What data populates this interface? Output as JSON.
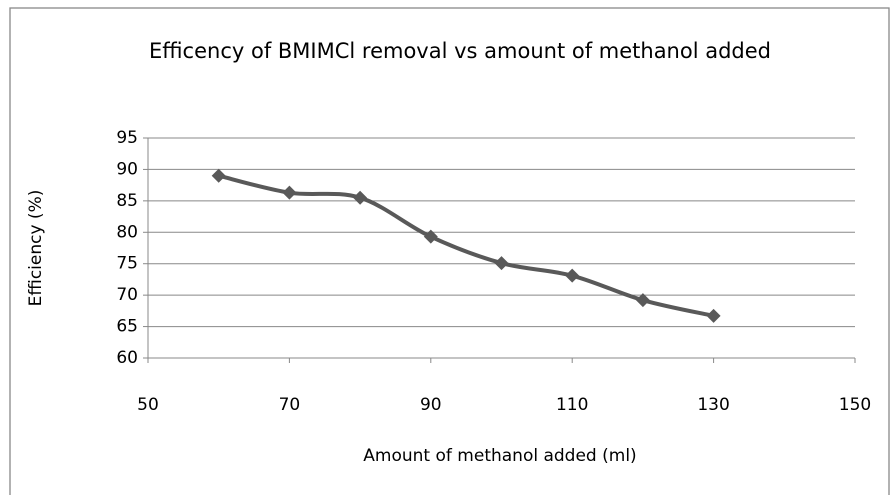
{
  "chart_data": {
    "type": "line",
    "title": "Efficency of BMIMCl removal vs amount of methanol added",
    "x_label": "Amount of methanol added (ml)",
    "y_label": "Efficiency (%)",
    "x": [
      60,
      70,
      80,
      90,
      100,
      110,
      120,
      130
    ],
    "series": [
      {
        "color": "#595959",
        "values": [
          89.0,
          86.3,
          85.5,
          79.3,
          75.1,
          73.1,
          69.2,
          66.7
        ]
      }
    ],
    "xlim": [
      50,
      150
    ],
    "xticks": [
      50,
      70,
      90,
      110,
      130,
      150
    ],
    "ylim": [
      60,
      95
    ],
    "yticks": [
      60,
      65,
      70,
      75,
      80,
      85,
      90,
      95
    ],
    "grid": true,
    "smooth": true
  }
}
